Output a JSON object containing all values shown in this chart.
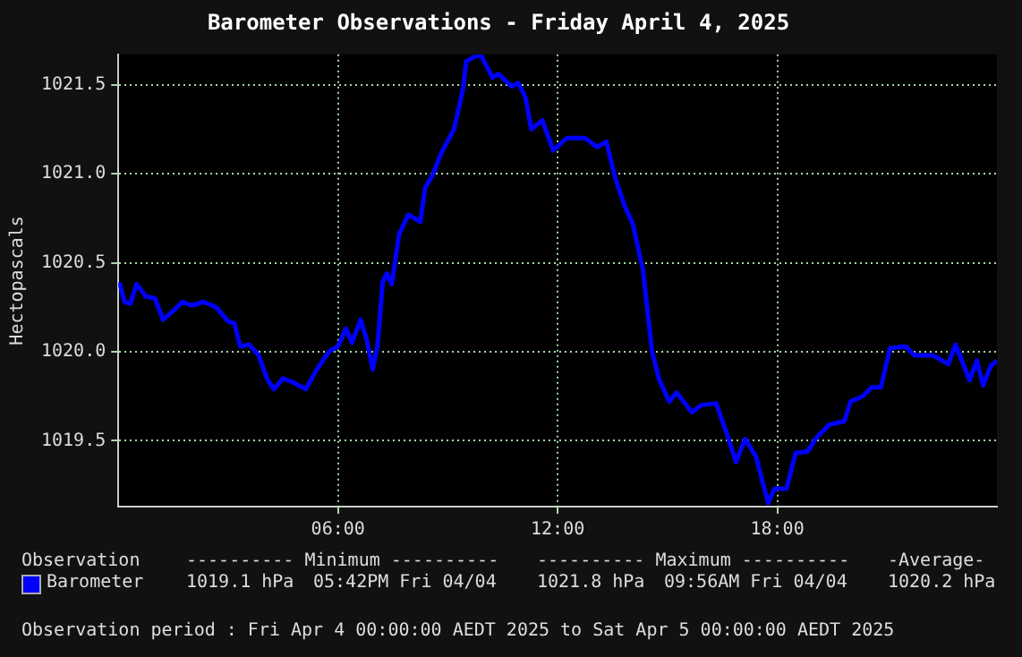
{
  "chart_data": {
    "type": "line",
    "title": "Barometer Observations - Friday April 4, 2025",
    "ylabel": "Hectopascals",
    "x": [
      0.03,
      0.17,
      0.33,
      0.5,
      0.75,
      1.0,
      1.22,
      1.5,
      1.75,
      2.0,
      2.33,
      2.67,
      3.0,
      3.17,
      3.33,
      3.58,
      3.83,
      4.08,
      4.25,
      4.5,
      4.75,
      5.12,
      5.42,
      5.75,
      6.0,
      6.22,
      6.38,
      6.62,
      6.78,
      6.95,
      7.08,
      7.22,
      7.33,
      7.47,
      7.67,
      7.92,
      8.25,
      8.38,
      8.58,
      8.83,
      9.17,
      9.42,
      9.5,
      9.75,
      9.92,
      10.22,
      10.38,
      10.75,
      10.92,
      11.12,
      11.28,
      11.58,
      11.88,
      12.25,
      12.75,
      13.08,
      13.33,
      13.58,
      13.83,
      14.05,
      14.33,
      14.58,
      14.78,
      15.05,
      15.25,
      15.67,
      15.92,
      16.33,
      16.62,
      16.87,
      17.12,
      17.42,
      17.75,
      17.92,
      18.25,
      18.5,
      18.83,
      19.08,
      19.42,
      19.83,
      20.0,
      20.33,
      20.58,
      20.83,
      21.08,
      21.5,
      21.75,
      22.25,
      22.67,
      22.87,
      23.25,
      23.45,
      23.62,
      23.83,
      24.0
    ],
    "series": [
      {
        "name": "Barometer",
        "color": "#0000ff",
        "values": [
          1020.39,
          1020.28,
          1020.27,
          1020.38,
          1020.31,
          1020.3,
          1020.18,
          1020.23,
          1020.28,
          1020.26,
          1020.28,
          1020.25,
          1020.17,
          1020.16,
          1020.03,
          1020.04,
          1019.98,
          1019.84,
          1019.79,
          1019.85,
          1019.83,
          1019.79,
          1019.9,
          1020.0,
          1020.03,
          1020.13,
          1020.05,
          1020.18,
          1020.07,
          1019.9,
          1020.03,
          1020.39,
          1020.44,
          1020.38,
          1020.66,
          1020.77,
          1020.73,
          1020.92,
          1020.99,
          1021.12,
          1021.25,
          1021.48,
          1021.63,
          1021.66,
          1021.66,
          1021.54,
          1021.56,
          1021.49,
          1021.51,
          1021.43,
          1021.25,
          1021.3,
          1021.13,
          1021.2,
          1021.2,
          1021.15,
          1021.18,
          1020.97,
          1020.82,
          1020.72,
          1020.46,
          1020.0,
          1019.84,
          1019.72,
          1019.77,
          1019.66,
          1019.7,
          1019.71,
          1019.54,
          1019.38,
          1019.51,
          1019.41,
          1019.15,
          1019.23,
          1019.23,
          1019.43,
          1019.44,
          1019.52,
          1019.59,
          1019.61,
          1019.72,
          1019.75,
          1019.8,
          1019.8,
          1020.02,
          1020.03,
          1019.98,
          1019.98,
          1019.93,
          1020.04,
          1019.84,
          1019.95,
          1019.81,
          1019.92,
          1019.95
        ]
      }
    ],
    "xlim": [
      0,
      24
    ],
    "xticks": [
      {
        "value": 6,
        "label": "06:00"
      },
      {
        "value": 12,
        "label": "12:00"
      },
      {
        "value": 18,
        "label": "18:00"
      }
    ],
    "ylim": [
      1019.13,
      1021.67
    ],
    "yticks": [
      {
        "value": 1019.5,
        "label": "1019.5"
      },
      {
        "value": 1020,
        "label": "1020.0"
      },
      {
        "value": 1020.5,
        "label": "1020.5"
      },
      {
        "value": 1021,
        "label": "1021.0"
      },
      {
        "value": 1021.5,
        "label": "1021.5"
      }
    ],
    "grid": true,
    "legend": "bottom",
    "marker": "none",
    "line_style": "solid",
    "annotations": [
      "Observation",
      "---------- Minimum ----------",
      "---------- Maximum ----------",
      "-Average-",
      "1019.1 hPa",
      "05:42PM Fri 04/04",
      "1021.8 hPa",
      "09:56AM Fri 04/04",
      "1020.2 hPa",
      "Observation period : Fri Apr 4 00:00:00 AEDT 2025 to Sat Apr 5 00:00:00 AEDT 2025"
    ]
  }
}
